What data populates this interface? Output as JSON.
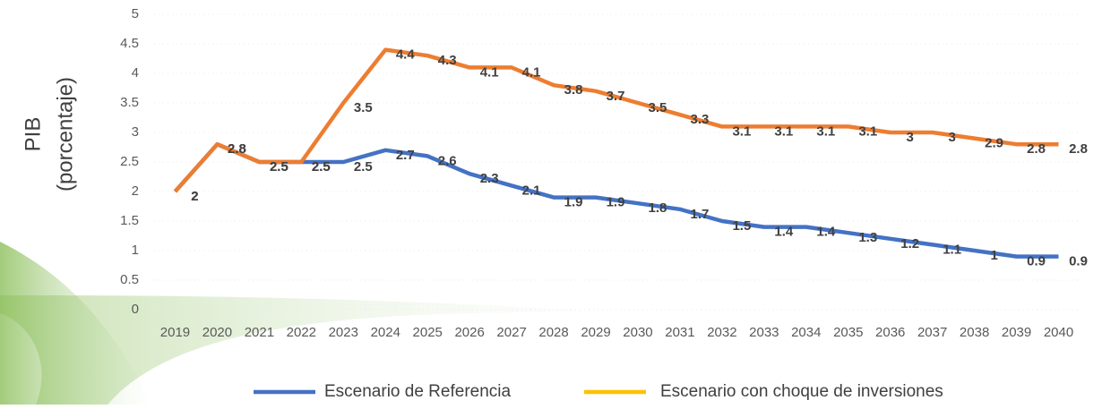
{
  "chart_data": {
    "type": "line",
    "y_label": [
      "PIB",
      "(porcentaje)"
    ],
    "categories": [
      "2019",
      "2020",
      "2021",
      "2022",
      "2023",
      "2024",
      "2025",
      "2026",
      "2027",
      "2028",
      "2029",
      "2030",
      "2031",
      "2032",
      "2033",
      "2034",
      "2035",
      "2036",
      "2037",
      "2038",
      "2039",
      "2040"
    ],
    "series": [
      {
        "name": "Escenario de Referencia",
        "color": "#4472c4",
        "legend_color": "#4472c4",
        "values": [
          2,
          2.8,
          2.5,
          2.5,
          2.5,
          2.7,
          2.6,
          2.3,
          2.1,
          1.9,
          1.9,
          1.8,
          1.7,
          1.5,
          1.4,
          1.4,
          1.3,
          1.2,
          1.1,
          1,
          0.9,
          0.9
        ]
      },
      {
        "name": "Escenario con choque de inversiones",
        "color": "#ed7d31",
        "legend_color": "#ffc000",
        "values": [
          2,
          2.8,
          2.5,
          2.5,
          3.5,
          4.4,
          4.3,
          4.1,
          4.1,
          3.8,
          3.7,
          3.5,
          3.3,
          3.1,
          3.1,
          3.1,
          3.1,
          3,
          3,
          2.9,
          2.8,
          2.8
        ]
      }
    ],
    "ylim": [
      0,
      5
    ],
    "yticks": [
      0,
      0.5,
      1,
      1.5,
      2,
      2.5,
      3,
      3.5,
      4,
      4.5,
      5
    ],
    "data_labels": true,
    "legend": "bottom"
  }
}
